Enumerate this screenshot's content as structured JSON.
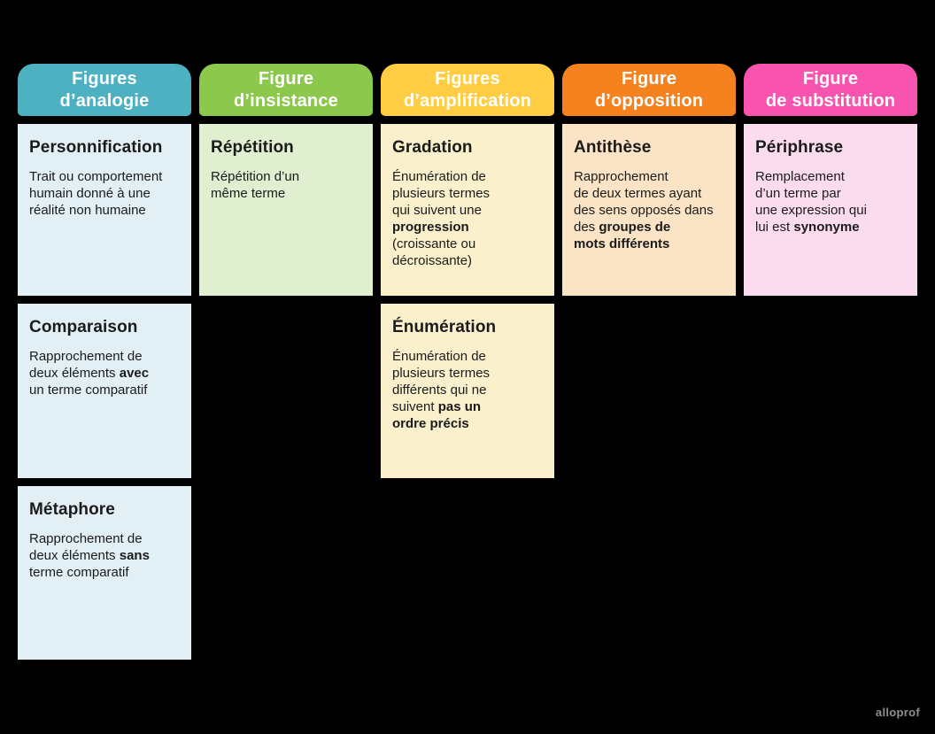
{
  "page": {
    "background_color": "#000000"
  },
  "watermark": {
    "text": "alloprof",
    "color": "#8f8f8f"
  },
  "columns": [
    {
      "header": {
        "label": "Figures\nd’analogie",
        "color": "#4db1c2",
        "text_color": "#ffffff"
      },
      "body_color": "#e2f0f5",
      "cards": [
        {
          "title": "Personnification",
          "segments": [
            {
              "t": "Trait ou comportement\nhumain donné à une\nréalité non humaine",
              "b": false
            }
          ]
        },
        {
          "title": "Comparaison",
          "segments": [
            {
              "t": "Rapprochement de\ndeux éléments ",
              "b": false
            },
            {
              "t": "avec",
              "b": true
            },
            {
              "t": "\nun terme comparatif",
              "b": false
            }
          ]
        },
        {
          "title": "Métaphore",
          "segments": [
            {
              "t": "Rapprochement de\ndeux éléments ",
              "b": false
            },
            {
              "t": "sans",
              "b": true
            },
            {
              "t": "\nterme comparatif",
              "b": false
            }
          ]
        }
      ]
    },
    {
      "header": {
        "label": "Figure\nd’insistance",
        "color": "#8cc84b",
        "text_color": "#ffffff"
      },
      "body_color": "#dfefd0",
      "cards": [
        {
          "title": "Répétition",
          "segments": [
            {
              "t": "Répétition d’un\nmême terme",
              "b": false
            }
          ]
        }
      ]
    },
    {
      "header": {
        "label": "Figures\nd’amplification",
        "color": "#ffcd44",
        "text_color": "#ffffff"
      },
      "body_color": "#faf0cc",
      "cards": [
        {
          "title": "Gradation",
          "segments": [
            {
              "t": "Énumération de\nplusieurs termes\nqui suivent une\n",
              "b": false
            },
            {
              "t": "progression",
              "b": true
            },
            {
              "t": "\n(croissante ou\ndécroissante)",
              "b": false
            }
          ]
        },
        {
          "title": "Énumération",
          "segments": [
            {
              "t": "Énumération de\nplusieurs termes\ndifférents qui ne\nsuivent ",
              "b": false
            },
            {
              "t": "pas un\nordre précis",
              "b": true
            }
          ]
        }
      ]
    },
    {
      "header": {
        "label": "Figure\nd’opposition",
        "color": "#f5821f",
        "text_color": "#ffffff"
      },
      "body_color": "#fae4c5",
      "cards": [
        {
          "title": "Antithèse",
          "segments": [
            {
              "t": "Rapprochement\nde deux termes ayant\ndes sens opposés dans\ndes ",
              "b": false
            },
            {
              "t": "groupes de\nmots différents",
              "b": true
            }
          ]
        }
      ]
    },
    {
      "header": {
        "label": "Figure\nde substitution",
        "color": "#f854af",
        "text_color": "#ffffff"
      },
      "body_color": "#fbdcee",
      "cards": [
        {
          "title": "Périphrase",
          "segments": [
            {
              "t": "Remplacement\nd’un terme par\nune expression qui\nlui est ",
              "b": false
            },
            {
              "t": "synonyme",
              "b": true
            }
          ]
        }
      ]
    }
  ]
}
